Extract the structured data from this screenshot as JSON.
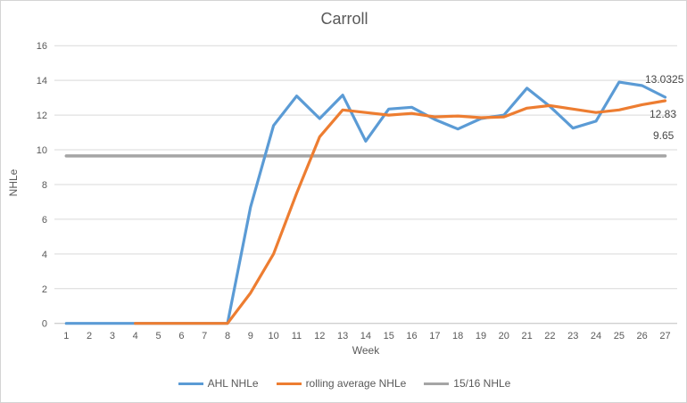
{
  "chart_data": {
    "type": "line",
    "title": "Carroll",
    "xlabel": "Week",
    "ylabel": "NHLe",
    "ylim": [
      0,
      16
    ],
    "ytick_step": 2,
    "grid": "horizontal",
    "legend_position": "bottom",
    "categories": [
      1,
      2,
      3,
      4,
      5,
      6,
      7,
      8,
      9,
      10,
      11,
      12,
      13,
      14,
      15,
      16,
      17,
      18,
      19,
      20,
      21,
      22,
      23,
      24,
      25,
      26,
      27
    ],
    "series": [
      {
        "name": "AHL NHLe",
        "color": "#5B9BD5",
        "values": [
          0,
          0,
          0,
          0,
          0,
          0,
          0,
          0,
          6.7,
          11.4,
          13.1,
          11.8,
          13.15,
          10.5,
          12.35,
          12.45,
          11.75,
          11.2,
          11.8,
          12.0,
          13.55,
          12.5,
          11.25,
          11.65,
          13.9,
          13.7,
          13.0325
        ]
      },
      {
        "name": "rolling average NHLe",
        "color": "#ED7D31",
        "values": [
          null,
          null,
          null,
          0,
          0,
          0,
          0,
          0,
          1.75,
          4.0,
          7.5,
          10.75,
          12.3,
          12.15,
          12.0,
          12.1,
          11.9,
          11.95,
          11.85,
          11.9,
          12.4,
          12.55,
          12.35,
          12.15,
          12.3,
          12.6,
          12.83
        ]
      },
      {
        "name": "15/16 NHLe",
        "color": "#A5A5A5",
        "values": [
          9.65,
          9.65,
          9.65,
          9.65,
          9.65,
          9.65,
          9.65,
          9.65,
          9.65,
          9.65,
          9.65,
          9.65,
          9.65,
          9.65,
          9.65,
          9.65,
          9.65,
          9.65,
          9.65,
          9.65,
          9.65,
          9.65,
          9.65,
          9.65,
          9.65,
          9.65,
          9.65
        ]
      }
    ],
    "end_labels": [
      {
        "text": "13.0325",
        "series": "AHL NHLe"
      },
      {
        "text": "12.83",
        "series": "rolling average NHLe"
      },
      {
        "text": "9.65",
        "series": "15/16 NHLe"
      }
    ],
    "colors": {
      "gridline": "#D9D9D9",
      "axis_line": "#BFBFBF",
      "text": "#595959"
    }
  }
}
